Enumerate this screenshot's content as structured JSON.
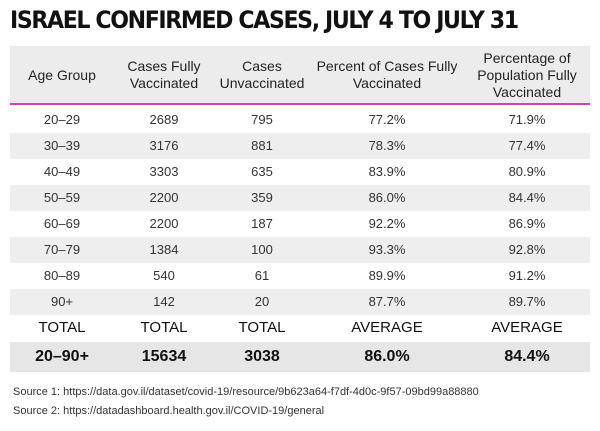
{
  "title": "ISRAEL CONFIRMED CASES, JULY 4 TO JULY 31",
  "headers": [
    "Age Group",
    "Cases Fully Vaccinated",
    "Cases Unvaccinated",
    "Percent of Cases Fully Vaccinated",
    "Percentage of Population Fully Vaccinated"
  ],
  "rows": [
    [
      "20–29",
      "2689",
      "795",
      "77.2%",
      "71.9%"
    ],
    [
      "30–39",
      "3176",
      "881",
      "78.3%",
      "77.4%"
    ],
    [
      "40–49",
      "3303",
      "635",
      "83.9%",
      "80.9%"
    ],
    [
      "50–59",
      "2200",
      "359",
      "86.0%",
      "84.4%"
    ],
    [
      "60–69",
      "2200",
      "187",
      "92.2%",
      "86.9%"
    ],
    [
      "70–79",
      "1384",
      "100",
      "93.3%",
      "92.8%"
    ],
    [
      "80–89",
      "540",
      "61",
      "89.9%",
      "91.2%"
    ],
    [
      "90+",
      "142",
      "20",
      "87.7%",
      "89.7%"
    ]
  ],
  "totals_labels": [
    "TOTAL",
    "TOTAL",
    "TOTAL",
    "AVERAGE",
    "AVERAGE"
  ],
  "totals_values": [
    "20–90+",
    "15634",
    "3038",
    "86.0%",
    "84.4%"
  ],
  "sources": [
    "Source 1: https://data.gov.il/dataset/covid-19/resource/9b623a64-f7df-4d0c-9f57-09bd99a88880",
    "Source 2: https://datadashboard.health.gov.il/COVID-19/general"
  ],
  "colors": {
    "accent_line": "#d63fb4",
    "header_band": "#ececec",
    "row_shade": "#eeeeee"
  }
}
